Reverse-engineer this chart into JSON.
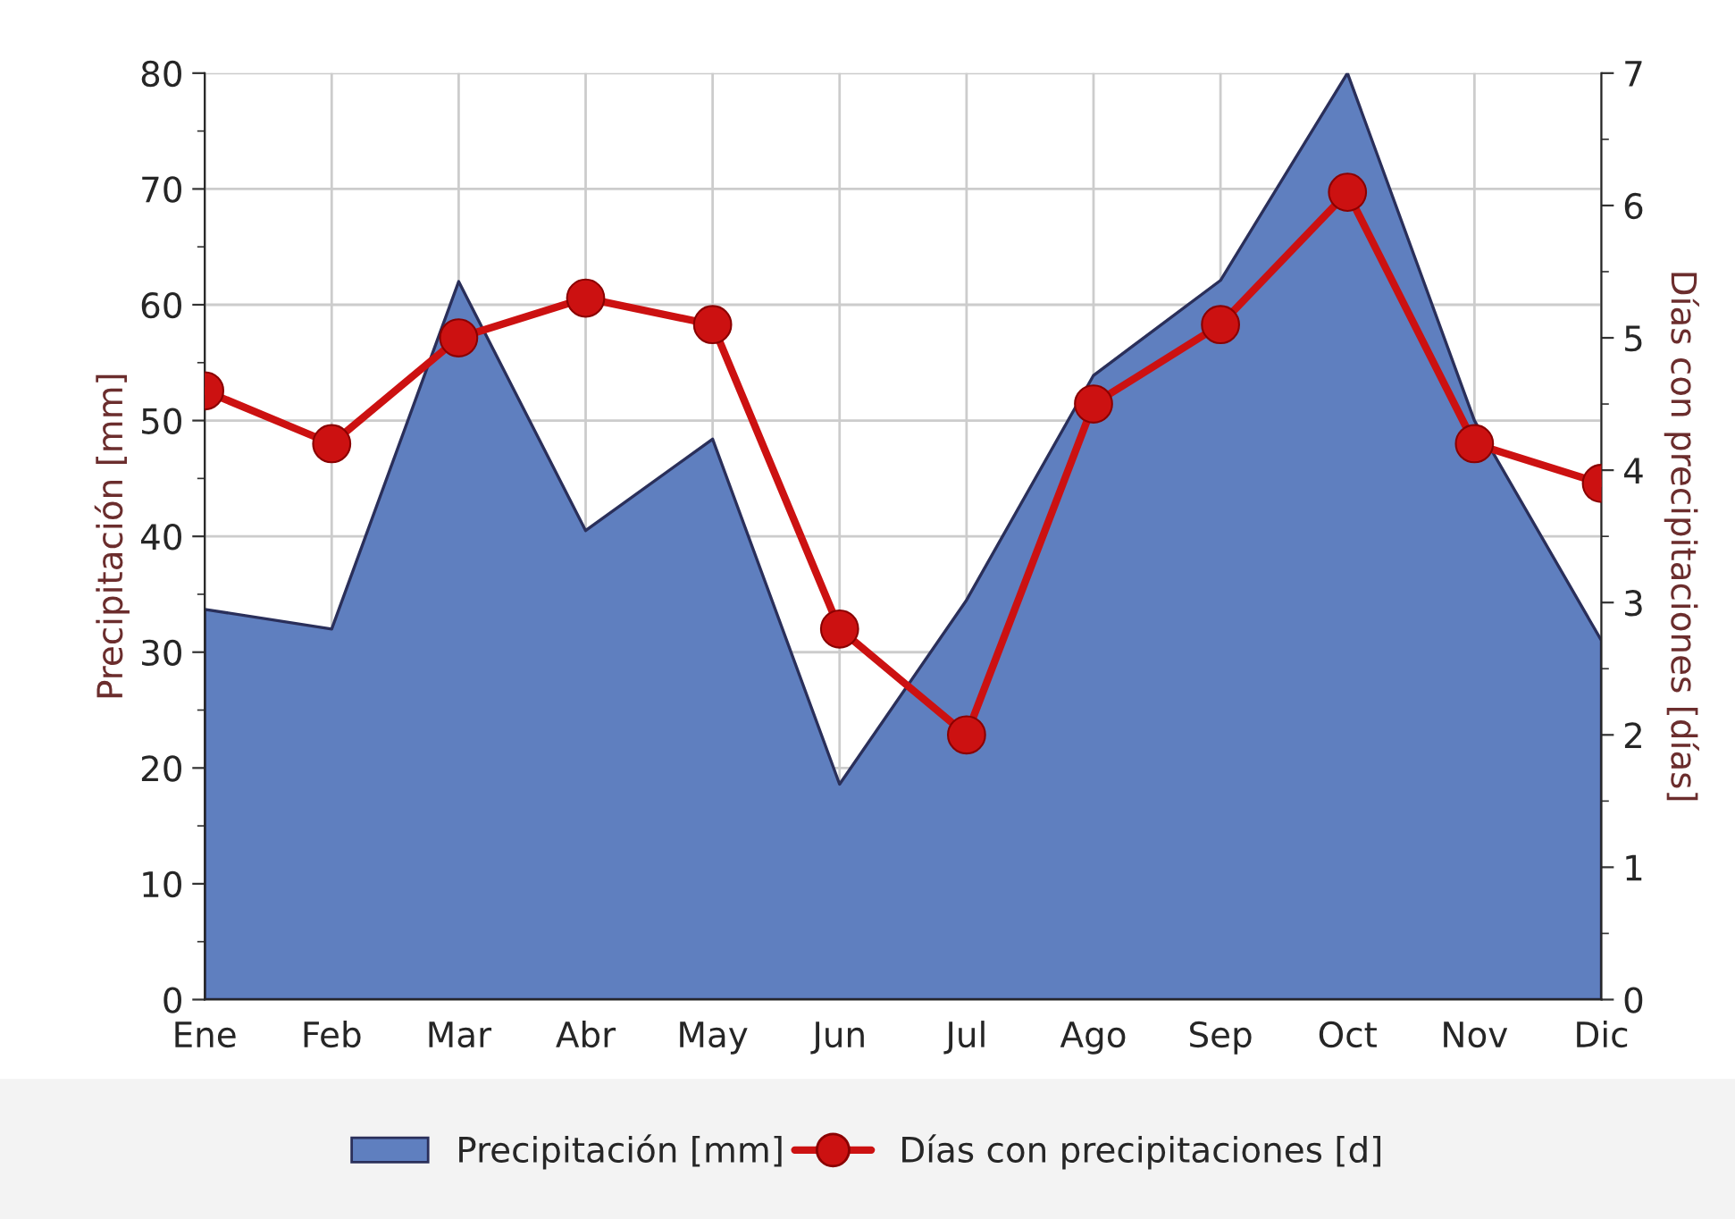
{
  "chart_data": {
    "type": "area",
    "categories": [
      "Ene",
      "Feb",
      "Mar",
      "Abr",
      "May",
      "Jun",
      "Jul",
      "Ago",
      "Sep",
      "Oct",
      "Nov",
      "Dic"
    ],
    "ylabel": "Precipitación [mm]",
    "y2label": "Días con precipitaciones [días]",
    "series": [
      {
        "name": "Precipitación [mm]",
        "color": "#5f7fbf",
        "values": [
          33.7,
          32,
          62,
          40.5,
          48.4,
          18.6,
          34.5,
          53.9,
          62.1,
          80,
          50,
          31
        ]
      },
      {
        "name": "Días con precipitaciones [d]",
        "type": "line",
        "axis": "y2",
        "color": "#cc1111",
        "marker": "circle",
        "line_style": "solid",
        "values": [
          4.6,
          4.2,
          5.0,
          5.3,
          5.1,
          2.8,
          2.0,
          4.5,
          5.1,
          6.1,
          4.2,
          3.9
        ]
      }
    ],
    "ylim": [
      0,
      80
    ],
    "yticks": [
      0,
      10,
      20,
      30,
      40,
      50,
      60,
      70,
      80
    ],
    "y2lim": [
      0,
      7
    ],
    "y2ticks": [
      0,
      1,
      2,
      3,
      4,
      5,
      6,
      7
    ],
    "grid": true,
    "legend": "bottom"
  }
}
